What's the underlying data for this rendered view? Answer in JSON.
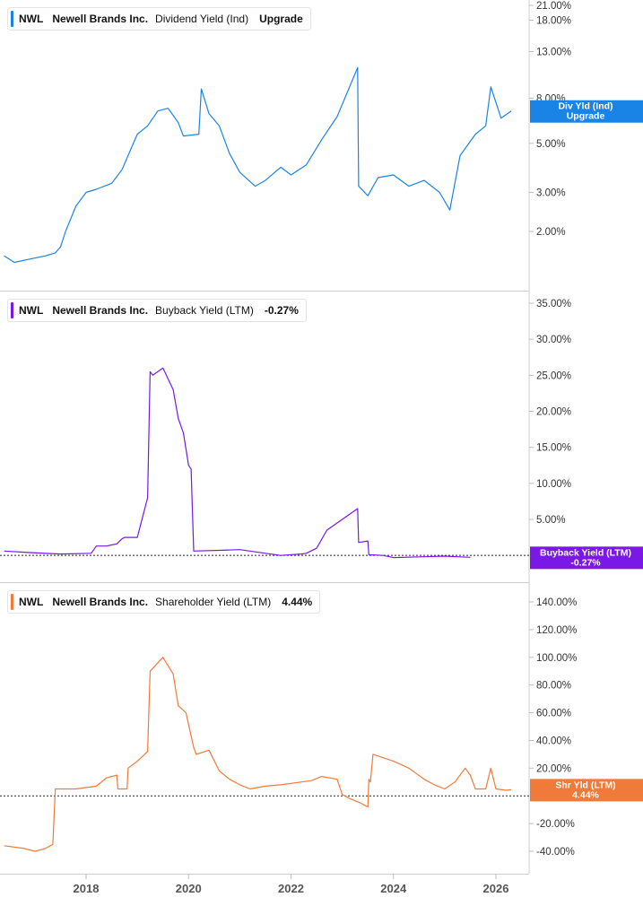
{
  "panels": [
    {
      "ticker": "NWL",
      "company": "Newell Brands Inc.",
      "metric": "Dividend Yield (Ind)",
      "value": "Upgrade",
      "color": "#1a84e6",
      "tag": {
        "line1": "Div Yld (Ind)",
        "line2": "Upgrade",
        "behind": "7.00%"
      },
      "y_ticks": [
        "21.00%",
        "18.00%",
        "13.00%",
        "8.00%",
        "5.00%",
        "3.00%",
        "2.00%"
      ]
    },
    {
      "ticker": "NWL",
      "company": "Newell Brands Inc.",
      "metric": "Buyback Yield (LTM)",
      "value": "-0.27%",
      "color": "#7a18e6",
      "tag": {
        "line1": "Buyback Yield (LTM)",
        "line2": "-0.27%"
      },
      "y_ticks": [
        "35.00%",
        "30.00%",
        "25.00%",
        "20.00%",
        "15.00%",
        "10.00%",
        "5.00%"
      ]
    },
    {
      "ticker": "NWL",
      "company": "Newell Brands Inc.",
      "metric": "Shareholder Yield (LTM)",
      "value": "4.44%",
      "color": "#f07a3a",
      "tag": {
        "line1": "Shr Yld (LTM)",
        "line2": "4.44%",
        "behind": "0.00%"
      },
      "y_ticks": [
        "140.00%",
        "120.00%",
        "100.00%",
        "80.00%",
        "60.00%",
        "40.00%",
        "20.00%",
        "-20.00%",
        "-40.00%"
      ]
    }
  ],
  "x_ticks": [
    "2018",
    "2020",
    "2022",
    "2024",
    "2026"
  ],
  "chart_data": [
    {
      "type": "line",
      "scale": "log",
      "ylim": [
        1.3,
        23
      ],
      "xlim": [
        2016.4,
        2026.75
      ],
      "yticks": [
        21,
        18,
        13,
        8,
        5,
        3,
        2
      ],
      "xticks": [
        2018,
        2020,
        2022,
        2024,
        2026
      ],
      "series": [
        {
          "name": "Dividend Yield (Ind)",
          "x": [
            2016.4,
            2016.6,
            2016.9,
            2017.2,
            2017.4,
            2017.5,
            2017.6,
            2017.8,
            2018.0,
            2018.2,
            2018.5,
            2018.7,
            2018.8,
            2019.0,
            2019.2,
            2019.4,
            2019.6,
            2019.8,
            2019.9,
            2020.2,
            2020.25,
            2020.4,
            2020.6,
            2020.8,
            2021.0,
            2021.3,
            2021.5,
            2021.8,
            2022.0,
            2022.3,
            2022.6,
            2022.9,
            2023.1,
            2023.3,
            2023.32,
            2023.5,
            2023.7,
            2024.0,
            2024.3,
            2024.6,
            2024.9,
            2025.1,
            2025.3,
            2025.6,
            2025.8,
            2025.9,
            2026.1,
            2026.3
          ],
          "y": [
            1.55,
            1.45,
            1.5,
            1.55,
            1.6,
            1.7,
            2.0,
            2.6,
            3.0,
            3.1,
            3.3,
            3.8,
            4.3,
            5.5,
            6.0,
            7.0,
            7.2,
            6.2,
            5.4,
            5.5,
            8.8,
            6.8,
            6.0,
            4.5,
            3.7,
            3.2,
            3.4,
            3.9,
            3.6,
            4.0,
            5.2,
            6.6,
            8.5,
            11.0,
            3.2,
            2.9,
            3.5,
            3.6,
            3.2,
            3.4,
            3.0,
            2.5,
            4.4,
            5.5,
            6.0,
            9.0,
            6.5,
            7.0
          ]
        }
      ]
    },
    {
      "type": "line",
      "ylim": [
        -3.2,
        36.7
      ],
      "xlim": [
        2016.4,
        2026.75
      ],
      "yticks": [
        35,
        30,
        25,
        20,
        15,
        10,
        5
      ],
      "xticks": [
        2018,
        2020,
        2022,
        2024,
        2026
      ],
      "series": [
        {
          "name": "Buyback Yield (LTM)",
          "x": [
            2016.4,
            2016.9,
            2017.5,
            2018.1,
            2018.2,
            2018.4,
            2018.6,
            2018.7,
            2018.75,
            2019.0,
            2019.2,
            2019.25,
            2019.3,
            2019.5,
            2019.7,
            2019.8,
            2019.9,
            2020.0,
            2020.05,
            2020.1,
            2020.6,
            2021.0,
            2021.5,
            2021.8,
            2022.2,
            2022.3,
            2022.5,
            2022.7,
            2023.0,
            2023.2,
            2023.3,
            2023.32,
            2023.5,
            2023.52,
            2023.8,
            2024.0,
            2024.5,
            2025.0,
            2025.5
          ],
          "y": [
            0.6,
            0.4,
            0.2,
            0.3,
            1.3,
            1.3,
            1.6,
            2.3,
            2.5,
            2.5,
            8.0,
            25.5,
            25.0,
            26.0,
            23.0,
            19.0,
            17.0,
            12.5,
            12.0,
            0.6,
            0.7,
            0.8,
            0.3,
            0.0,
            0.2,
            0.3,
            1.0,
            3.5,
            5.0,
            6.0,
            6.5,
            1.8,
            2.0,
            0.1,
            0.0,
            -0.3,
            -0.2,
            -0.1,
            -0.27
          ]
        }
      ]
    },
    {
      "type": "line",
      "ylim": [
        -53.8,
        147
      ],
      "xlim": [
        2016.4,
        2026.75
      ],
      "yticks": [
        140,
        120,
        100,
        80,
        60,
        40,
        20,
        -20,
        -40
      ],
      "xticks": [
        2018,
        2020,
        2022,
        2024,
        2026
      ],
      "series": [
        {
          "name": "Shareholder Yield (LTM)",
          "x": [
            2016.4,
            2016.8,
            2017.0,
            2017.2,
            2017.35,
            2017.4,
            2017.8,
            2018.2,
            2018.4,
            2018.6,
            2018.62,
            2018.8,
            2018.82,
            2019.0,
            2019.2,
            2019.25,
            2019.5,
            2019.7,
            2019.8,
            2019.95,
            2020.1,
            2020.15,
            2020.4,
            2020.6,
            2020.8,
            2021.0,
            2021.2,
            2021.5,
            2021.8,
            2022.0,
            2022.4,
            2022.6,
            2022.9,
            2023.0,
            2023.15,
            2023.35,
            2023.5,
            2023.52,
            2023.55,
            2023.6,
            2024.0,
            2024.3,
            2024.6,
            2024.8,
            2025.0,
            2025.2,
            2025.4,
            2025.5,
            2025.6,
            2025.8,
            2025.9,
            2026.0,
            2026.2,
            2026.3
          ],
          "y": [
            -36,
            -38,
            -40,
            -38,
            -35,
            5,
            5,
            7,
            13,
            15,
            5,
            5,
            20,
            25,
            32,
            90,
            100,
            88,
            65,
            60,
            35,
            30,
            33,
            18,
            12,
            8,
            5,
            7,
            8,
            9,
            11,
            14,
            12,
            1,
            -2,
            -5,
            -8,
            12,
            10,
            30,
            25,
            20,
            12,
            8,
            5,
            10,
            20,
            15,
            5,
            5,
            20,
            5,
            4,
            4.44
          ]
        }
      ]
    }
  ]
}
